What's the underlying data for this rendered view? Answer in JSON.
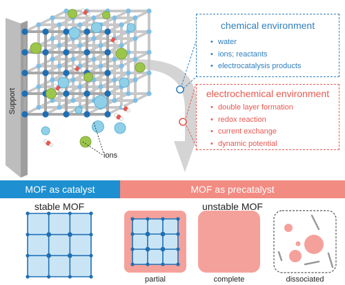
{
  "support_label": "Support",
  "ions_label": "ions",
  "chemical": {
    "title": "chemical environment",
    "items": [
      "water",
      "ions; reactants",
      "electrocatalysis products"
    ],
    "color": "#2e7fbf"
  },
  "electrochemical": {
    "title": "electrochemical environment",
    "items": [
      "double layer formation",
      "redox reaction",
      "current exchange",
      "dynamic potential"
    ],
    "color": "#e8574f"
  },
  "bands": {
    "catalyst": {
      "label": "MOF as catalyst",
      "color": "#1e8fd0"
    },
    "precatalyst": {
      "label": "MOF as precatalyst",
      "color": "#f28b82"
    }
  },
  "stable_label": "stable MOF",
  "unstable_label": "unstable MOF",
  "cases": [
    "partial",
    "complete",
    "dissociated"
  ],
  "colors": {
    "node": "#1f6fb4",
    "linker": "#b3d9ef",
    "ion_green": "#9cc64b",
    "ion_blue": "#8fd0e8",
    "pink": "#f5a19b",
    "arrow": "#d4d4d4"
  }
}
